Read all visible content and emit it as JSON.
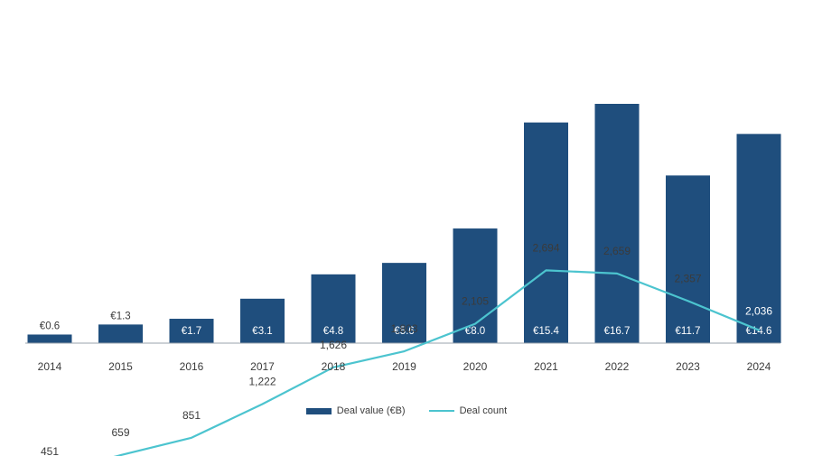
{
  "chart_data": {
    "type": "bar",
    "categories": [
      "2014",
      "2015",
      "2016",
      "2017",
      "2018",
      "2019",
      "2020",
      "2021",
      "2022",
      "2023",
      "2024"
    ],
    "series": [
      {
        "name": "Deal value (€B)",
        "type": "bar",
        "values": [
          0.6,
          1.3,
          1.7,
          3.1,
          4.8,
          5.6,
          8.0,
          15.4,
          16.7,
          11.7,
          14.6
        ],
        "labels": [
          "€0.6",
          "€1.3",
          "€1.7",
          "€3.1",
          "€4.8",
          "€5.6",
          "€8.0",
          "€15.4",
          "€16.7",
          "€11.7",
          "€14.6"
        ],
        "color": "#1f4e7d"
      },
      {
        "name": "Deal count",
        "type": "line",
        "values": [
          451,
          659,
          851,
          1222,
          1626,
          1803,
          2105,
          2694,
          2659,
          2357,
          2036
        ],
        "labels": [
          "451",
          "659",
          "851",
          "1,222",
          "1,626",
          "1,803",
          "2,105",
          "2,694",
          "2,659",
          "2,357",
          "2,036"
        ],
        "color": "#4cc4cf"
      }
    ],
    "legend_position": "bottom-center",
    "grid": false
  },
  "legend": {
    "bar_label": "Deal value (€B)",
    "line_label": "Deal count"
  }
}
